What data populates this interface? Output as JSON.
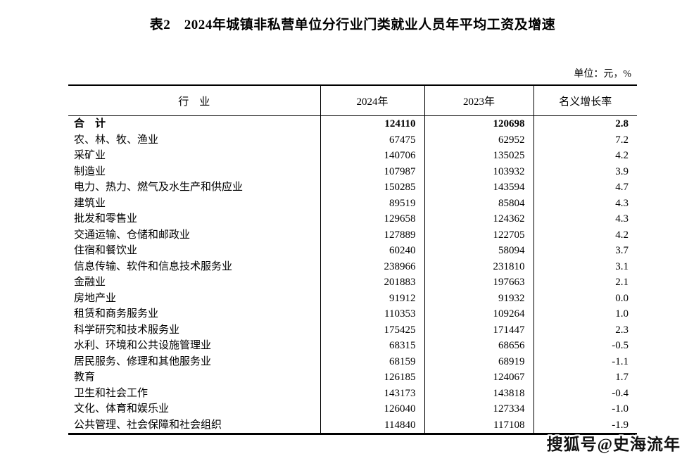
{
  "page": {
    "title": "表2　2024年城镇非私营单位分行业门类就业人员年平均工资及增速",
    "unit_note": "单位：元，%",
    "watermark": "搜狐号@史海流年"
  },
  "table": {
    "columns": [
      "行　业",
      "2024年",
      "2023年",
      "名义增长率"
    ],
    "rows": [
      {
        "industry": "合　计",
        "y2024": "124110",
        "y2023": "120698",
        "growth": "2.8",
        "bold": true
      },
      {
        "industry": "农、林、牧、渔业",
        "y2024": "67475",
        "y2023": "62952",
        "growth": "7.2"
      },
      {
        "industry": "采矿业",
        "y2024": "140706",
        "y2023": "135025",
        "growth": "4.2"
      },
      {
        "industry": "制造业",
        "y2024": "107987",
        "y2023": "103932",
        "growth": "3.9"
      },
      {
        "industry": "电力、热力、燃气及水生产和供应业",
        "y2024": "150285",
        "y2023": "143594",
        "growth": "4.7"
      },
      {
        "industry": "建筑业",
        "y2024": "89519",
        "y2023": "85804",
        "growth": "4.3"
      },
      {
        "industry": "批发和零售业",
        "y2024": "129658",
        "y2023": "124362",
        "growth": "4.3"
      },
      {
        "industry": "交通运输、仓储和邮政业",
        "y2024": "127889",
        "y2023": "122705",
        "growth": "4.2"
      },
      {
        "industry": "住宿和餐饮业",
        "y2024": "60240",
        "y2023": "58094",
        "growth": "3.7"
      },
      {
        "industry": "信息传输、软件和信息技术服务业",
        "y2024": "238966",
        "y2023": "231810",
        "growth": "3.1"
      },
      {
        "industry": "金融业",
        "y2024": "201883",
        "y2023": "197663",
        "growth": "2.1"
      },
      {
        "industry": "房地产业",
        "y2024": "91912",
        "y2023": "91932",
        "growth": "0.0"
      },
      {
        "industry": "租赁和商务服务业",
        "y2024": "110353",
        "y2023": "109264",
        "growth": "1.0"
      },
      {
        "industry": "科学研究和技术服务业",
        "y2024": "175425",
        "y2023": "171447",
        "growth": "2.3"
      },
      {
        "industry": "水利、环境和公共设施管理业",
        "y2024": "68315",
        "y2023": "68656",
        "growth": "-0.5"
      },
      {
        "industry": "居民服务、修理和其他服务业",
        "y2024": "68159",
        "y2023": "68919",
        "growth": "-1.1"
      },
      {
        "industry": "教育",
        "y2024": "126185",
        "y2023": "124067",
        "growth": "1.7"
      },
      {
        "industry": "卫生和社会工作",
        "y2024": "143173",
        "y2023": "143818",
        "growth": "-0.4"
      },
      {
        "industry": "文化、体育和娱乐业",
        "y2024": "126040",
        "y2023": "127334",
        "growth": "-1.0"
      },
      {
        "industry": "公共管理、社会保障和社会组织",
        "y2024": "114840",
        "y2023": "117108",
        "growth": "-1.9"
      }
    ]
  }
}
